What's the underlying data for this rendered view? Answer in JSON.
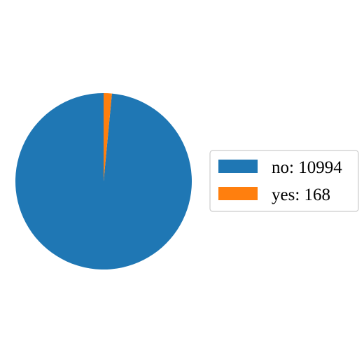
{
  "chart_data": {
    "type": "pie",
    "title": "",
    "legend_position": "right",
    "start_angle_deg": 90,
    "direction": "counterclockwise",
    "slices": [
      {
        "label": "no",
        "value": 10994,
        "legend_text": "no: 10994",
        "color": "#1f77b4"
      },
      {
        "label": "yes",
        "value": 168,
        "legend_text": "yes: 168",
        "color": "#ff7f0e"
      }
    ]
  }
}
